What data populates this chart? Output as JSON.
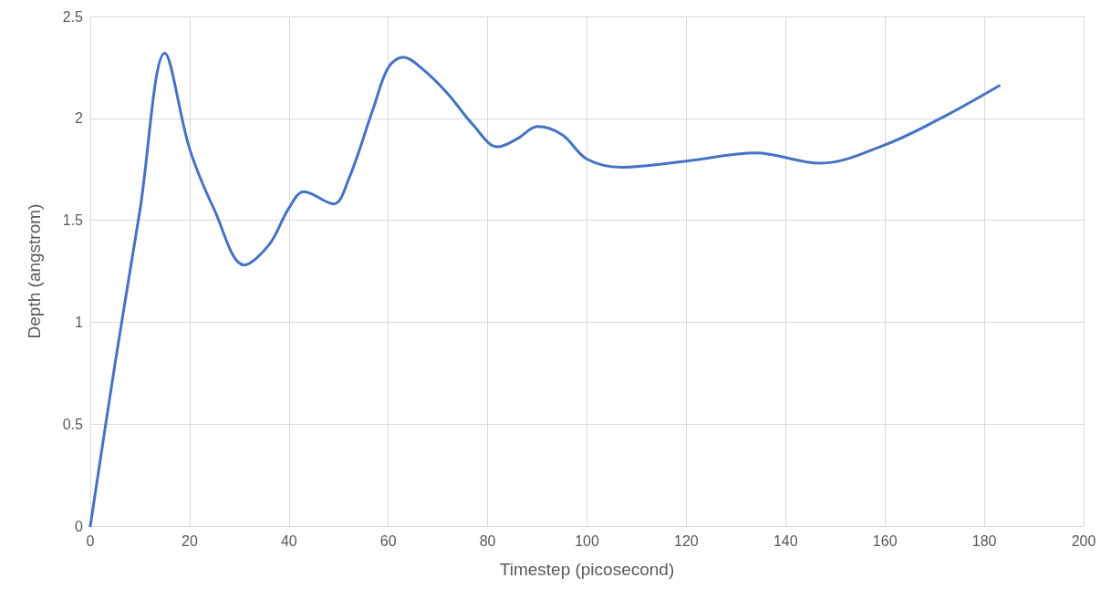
{
  "chart_data": {
    "type": "line",
    "xlabel": "Timestep (picosecond)",
    "ylabel": "Depth (angstrom)",
    "x": [
      0,
      5,
      10,
      15,
      20,
      25,
      31,
      36,
      40,
      43,
      49,
      52,
      57,
      60,
      63,
      67,
      72,
      77,
      82,
      86,
      90,
      95,
      100,
      107,
      120,
      134,
      147,
      160,
      172,
      183
    ],
    "series": [
      {
        "color": "#4472c4",
        "values": [
          0,
          0.8,
          1.55,
          2.32,
          1.85,
          1.55,
          1.28,
          1.38,
          1.56,
          1.64,
          1.58,
          1.7,
          2.05,
          2.25,
          2.3,
          2.24,
          2.12,
          1.97,
          1.86,
          1.9,
          1.96,
          1.92,
          1.8,
          1.76,
          1.79,
          1.83,
          1.78,
          1.87,
          2.01,
          2.16
        ]
      }
    ],
    "xlim": [
      0,
      200
    ],
    "xticks": [
      0,
      20,
      40,
      60,
      80,
      100,
      120,
      140,
      160,
      180,
      200
    ],
    "ylim": [
      0,
      2.5
    ],
    "yticks": [
      0,
      0.5,
      1,
      1.5,
      2,
      2.5
    ],
    "grid": true,
    "marker": "none",
    "line_style": "solid"
  }
}
